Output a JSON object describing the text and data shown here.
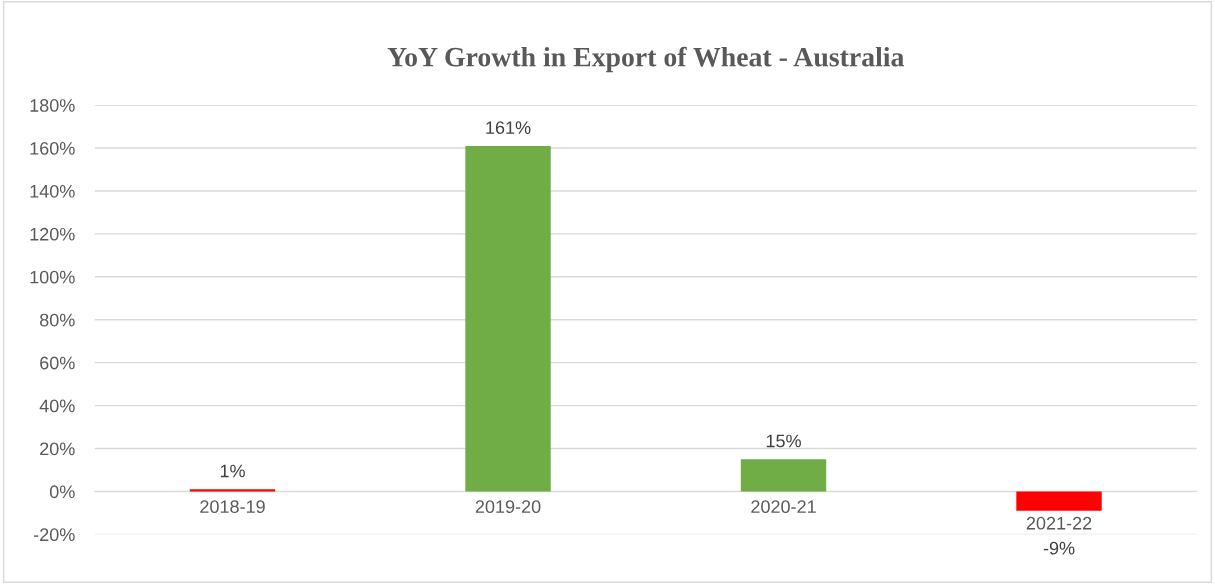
{
  "chart_data": {
    "type": "bar",
    "title": "YoY Growth in Export of Wheat - Australia",
    "categories": [
      "2018-19",
      "2019-20",
      "2020-21",
      "2021-22"
    ],
    "values": [
      1,
      161,
      15,
      -9
    ],
    "colors": [
      "#ff0000",
      "#70ad47",
      "#70ad47",
      "#ff0000"
    ],
    "value_labels": [
      "1%",
      "161%",
      "15%",
      "-9%"
    ],
    "ylim": [
      -20,
      180
    ],
    "yticks": [
      {
        "value": -20,
        "label": "-20%"
      },
      {
        "value": 0,
        "label": "0%"
      },
      {
        "value": 20,
        "label": "20%"
      },
      {
        "value": 40,
        "label": "40%"
      },
      {
        "value": 60,
        "label": "60%"
      },
      {
        "value": 80,
        "label": "80%"
      },
      {
        "value": 100,
        "label": "100%"
      },
      {
        "value": 120,
        "label": "120%"
      },
      {
        "value": 140,
        "label": "140%"
      },
      {
        "value": 160,
        "label": "160%"
      },
      {
        "value": 180,
        "label": "180%"
      }
    ],
    "grid": "y",
    "legend": false
  }
}
